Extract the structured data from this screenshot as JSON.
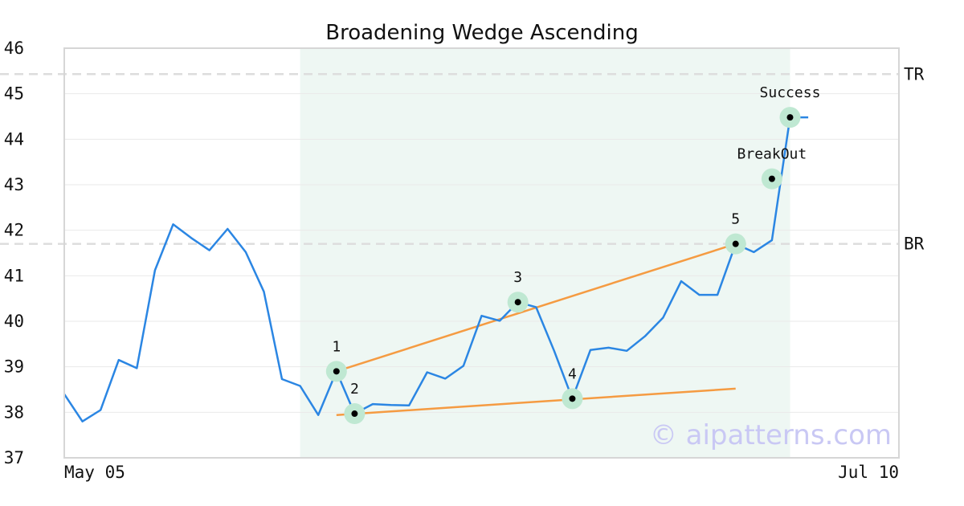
{
  "chart_data": {
    "type": "line",
    "title": "Broadening Wedge Ascending",
    "watermark": "© aipatterns.com",
    "ylim": [
      37,
      46
    ],
    "yticks": [
      "37",
      "38",
      "39",
      "40",
      "41",
      "42",
      "43",
      "44",
      "45",
      "46"
    ],
    "xlim": [
      0,
      46
    ],
    "xticks": [
      {
        "x": 0,
        "label": "May 05"
      },
      {
        "x": 46,
        "label": "Jul 10"
      }
    ],
    "grid": true,
    "colors": {
      "price": "#2b86e3",
      "trendline": "#f59b42",
      "shade": "#eef7f3",
      "level": "#dddddd",
      "marker_halo": "#bfe8d2",
      "marker": "#000000"
    },
    "shade_range": [
      13,
      40
    ],
    "series": [
      {
        "values": [
          38.4,
          37.8,
          38.05,
          39.15,
          38.97,
          41.12,
          42.13,
          41.83,
          41.56,
          42.03,
          41.52,
          40.65,
          38.73,
          38.58,
          37.94,
          38.9,
          37.97,
          38.18,
          38.16,
          38.15,
          38.88,
          38.74,
          39.02,
          40.12,
          40.01,
          40.42,
          40.31,
          39.35,
          38.3,
          39.37,
          39.42,
          39.35,
          39.67,
          40.08,
          40.88,
          40.58,
          40.58,
          41.7,
          41.52,
          41.78,
          44.48,
          44.48
        ]
      }
    ],
    "trendlines": [
      {
        "from": [
          15,
          38.9
        ],
        "to": [
          37,
          41.7
        ]
      },
      {
        "from": [
          15,
          37.94
        ],
        "to": [
          37,
          38.52
        ]
      }
    ],
    "levels": [
      {
        "label": "TR",
        "y": 45.43
      },
      {
        "label": "BR",
        "y": 41.7
      }
    ],
    "points": [
      {
        "label": "1",
        "x": 15,
        "y": 38.9,
        "label_pos": "above"
      },
      {
        "label": "2",
        "x": 16,
        "y": 37.97,
        "label_pos": "above"
      },
      {
        "label": "3",
        "x": 25,
        "y": 40.42,
        "label_pos": "above"
      },
      {
        "label": "4",
        "x": 28,
        "y": 38.3,
        "label_pos": "above"
      },
      {
        "label": "5",
        "x": 37,
        "y": 41.7,
        "label_pos": "above"
      },
      {
        "label": "BreakOut",
        "x": 39,
        "y": 43.13,
        "label_pos": "above"
      },
      {
        "label": "Success",
        "x": 40,
        "y": 44.48,
        "label_pos": "above"
      }
    ]
  }
}
